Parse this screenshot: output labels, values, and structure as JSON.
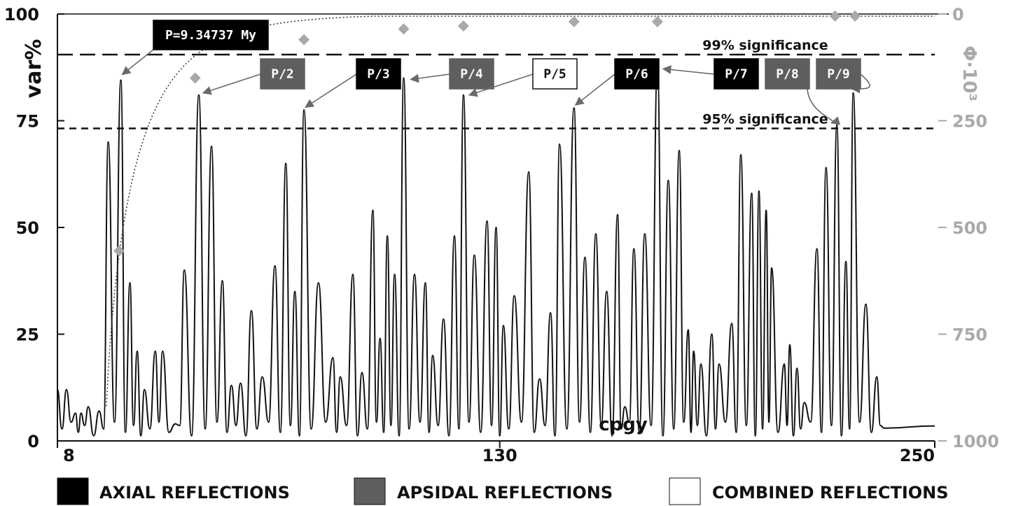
{
  "chart_data": {
    "type": "line",
    "xlabel": "cpgy",
    "ylabel": "var%",
    "ylabel_right": "Φ·10³",
    "xlim": [
      8,
      250
    ],
    "ylim": [
      0,
      100
    ],
    "ylim_right": [
      1000,
      0
    ],
    "x_ticks": [
      "8",
      "130",
      "250"
    ],
    "y_ticks": [
      "0",
      "25",
      "50",
      "75",
      "100"
    ],
    "y_ticks_right": [
      "1000",
      "750",
      "500",
      "250",
      "0"
    ],
    "significance_lines": [
      {
        "label": "99% significance",
        "value": 90.5,
        "style": "long-dash"
      },
      {
        "label": "95% significance",
        "value": 73.2,
        "style": "short-dash"
      }
    ],
    "spectrum_peaks": [
      [
        8,
        12
      ],
      [
        10.5,
        12
      ],
      [
        13,
        6.5
      ],
      [
        14.5,
        6.5
      ],
      [
        16.5,
        8
      ],
      [
        19.5,
        7
      ],
      [
        22,
        70
      ],
      [
        25.5,
        84.5
      ],
      [
        28,
        37
      ],
      [
        30,
        21
      ],
      [
        32,
        12
      ],
      [
        35,
        21
      ],
      [
        37,
        21
      ],
      [
        40.5,
        4
      ],
      [
        43,
        40
      ],
      [
        47,
        81
      ],
      [
        50.5,
        69
      ],
      [
        53.5,
        37.5
      ],
      [
        56,
        13
      ],
      [
        58.5,
        13.5
      ],
      [
        61.5,
        30.5
      ],
      [
        64.5,
        15
      ],
      [
        68,
        41
      ],
      [
        71,
        65
      ],
      [
        73.5,
        35
      ],
      [
        76,
        77.5
      ],
      [
        80,
        37
      ],
      [
        84,
        19.5
      ],
      [
        86,
        15
      ],
      [
        89.5,
        39
      ],
      [
        92,
        16
      ],
      [
        95,
        54
      ],
      [
        97,
        24
      ],
      [
        99,
        48
      ],
      [
        101,
        39
      ],
      [
        103.5,
        85
      ],
      [
        106.5,
        39
      ],
      [
        109.5,
        37
      ],
      [
        111.5,
        20
      ],
      [
        114.5,
        28.5
      ],
      [
        117.5,
        48
      ],
      [
        120,
        81
      ],
      [
        123,
        43.5
      ],
      [
        126.5,
        51.5
      ],
      [
        129,
        50
      ],
      [
        131,
        27
      ],
      [
        134,
        34
      ],
      [
        138,
        63
      ],
      [
        141,
        14.5
      ],
      [
        144,
        30
      ],
      [
        146.5,
        69.5
      ],
      [
        150.5,
        78
      ],
      [
        153.5,
        43
      ],
      [
        156.5,
        48.5
      ],
      [
        159.5,
        35
      ],
      [
        162.5,
        53
      ],
      [
        164.5,
        8
      ],
      [
        167,
        45
      ],
      [
        170,
        48.5
      ],
      [
        173.5,
        87.5
      ],
      [
        176.5,
        61
      ],
      [
        179.5,
        68
      ],
      [
        182,
        26
      ],
      [
        183.5,
        21
      ],
      [
        185.5,
        18
      ],
      [
        188.5,
        25
      ],
      [
        190.5,
        18
      ],
      [
        194,
        27.5
      ],
      [
        196.5,
        67
      ],
      [
        199.5,
        58
      ],
      [
        201.5,
        58.5
      ],
      [
        203.5,
        54
      ],
      [
        205,
        40.5
      ],
      [
        208.5,
        18
      ],
      [
        210,
        22.5
      ],
      [
        212,
        17
      ],
      [
        214,
        9
      ],
      [
        217.5,
        45
      ],
      [
        220,
        64
      ],
      [
        223,
        74
      ],
      [
        225.5,
        42
      ],
      [
        227.5,
        81.5
      ],
      [
        231,
        32
      ],
      [
        234,
        15
      ],
      [
        236,
        3
      ]
    ],
    "phase_points": [
      {
        "x": 25,
        "y": 555
      },
      {
        "x": 46,
        "y": 150
      },
      {
        "x": 76,
        "y": 60
      },
      {
        "x": 103.5,
        "y": 35
      },
      {
        "x": 120,
        "y": 28
      },
      {
        "x": 150.5,
        "y": 18
      },
      {
        "x": 173.5,
        "y": 18
      },
      {
        "x": 222.5,
        "y": 5
      },
      {
        "x": 228,
        "y": 5
      }
    ]
  },
  "annotations": [
    {
      "label": "P=9.34737 My",
      "type": "axial",
      "peak": {
        "x": 25.5,
        "y": 84.5
      }
    },
    {
      "label": "P/2",
      "type": "apsidal",
      "peak": {
        "x": 47,
        "y": 81
      }
    },
    {
      "label": "P/3",
      "type": "axial",
      "peak": {
        "x": 76,
        "y": 77.5
      }
    },
    {
      "label": "P/4",
      "type": "apsidal",
      "peak": {
        "x": 103.5,
        "y": 85
      }
    },
    {
      "label": "P/5",
      "type": "combined",
      "peak": {
        "x": 120,
        "y": 81
      }
    },
    {
      "label": "P/6",
      "type": "axial",
      "peak": {
        "x": 150.5,
        "y": 78
      }
    },
    {
      "label": "P/7",
      "type": "axial",
      "peak": {
        "x": 173.5,
        "y": 87.5
      }
    },
    {
      "label": "P/8",
      "type": "apsidal",
      "peak": {
        "x": 223,
        "y": 74
      }
    },
    {
      "label": "P/9",
      "type": "apsidal",
      "peak": {
        "x": 227.5,
        "y": 81.5
      }
    }
  ],
  "legend": [
    {
      "label": "AXIAL REFLECTIONS",
      "color": "#000000"
    },
    {
      "label": "APSIDAL REFLECTIONS",
      "color": "#5e5e5e"
    },
    {
      "label": "COMBINED REFLECTIONS",
      "color": "#ffffff"
    }
  ],
  "colors": {
    "axial": "#000000",
    "apsidal": "#5e5e5e",
    "combined": "#ffffff",
    "phase_marker": "#a9a9a9",
    "right_axis": "#a9a9a9"
  }
}
